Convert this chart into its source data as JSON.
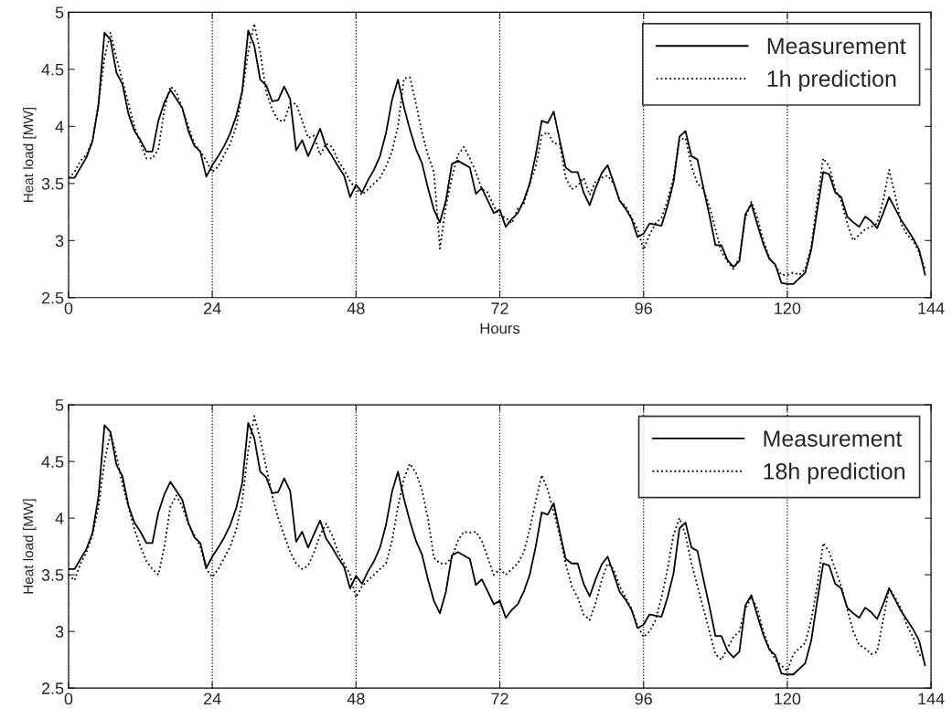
{
  "chart_data": [
    {
      "type": "line",
      "xlabel": "Hours",
      "ylabel": "Heat load [MW]",
      "xlim": [
        0,
        144
      ],
      "xticks": [
        0,
        24,
        48,
        72,
        96,
        120,
        144
      ],
      "ylim": [
        2.5,
        5
      ],
      "yticks": [
        2.5,
        3,
        3.5,
        4,
        4.5,
        5
      ],
      "grid": "x",
      "legend": "top right",
      "marker": "none",
      "x": [
        0,
        1,
        2,
        3,
        4,
        5,
        6,
        7,
        8,
        9,
        10,
        11,
        12,
        13,
        14,
        15,
        16,
        17,
        18,
        19,
        20,
        21,
        22,
        23,
        24,
        25,
        26,
        27,
        28,
        29,
        30,
        31,
        32,
        33,
        34,
        35,
        36,
        37,
        38,
        39,
        40,
        41,
        42,
        43,
        44,
        45,
        46,
        47,
        48,
        49,
        50,
        51,
        52,
        53,
        54,
        55,
        56,
        57,
        58,
        59,
        60,
        61,
        62,
        63,
        64,
        65,
        66,
        67,
        68,
        69,
        70,
        71,
        72,
        73,
        74,
        75,
        76,
        77,
        78,
        79,
        80,
        81,
        82,
        83,
        84,
        85,
        86,
        87,
        88,
        89,
        90,
        91,
        92,
        93,
        94,
        95,
        96,
        97,
        98,
        99,
        100,
        101,
        102,
        103,
        104,
        105,
        106,
        107,
        108,
        109,
        110,
        111,
        112,
        113,
        114,
        115,
        116,
        117,
        118,
        119,
        120,
        121,
        122,
        123,
        124,
        125,
        126,
        127,
        128,
        129,
        130,
        131,
        132,
        133,
        134,
        135,
        136,
        137,
        138,
        139,
        140,
        141,
        142,
        143
      ],
      "series": [
        {
          "name": "Measurement",
          "color": "#000000",
          "line_style": "solid",
          "values": [
            3.55,
            3.55,
            3.64,
            3.73,
            3.87,
            4.19,
            4.82,
            4.76,
            4.47,
            4.37,
            4.11,
            3.96,
            3.88,
            3.78,
            3.78,
            4.05,
            4.21,
            4.32,
            4.24,
            4.16,
            3.96,
            3.83,
            3.78,
            3.56,
            3.66,
            3.74,
            3.83,
            3.94,
            4.09,
            4.31,
            4.84,
            4.71,
            4.41,
            4.36,
            4.22,
            4.23,
            4.35,
            4.24,
            3.79,
            3.88,
            3.74,
            3.86,
            3.98,
            3.82,
            3.74,
            3.65,
            3.57,
            3.38,
            3.49,
            3.42,
            3.53,
            3.62,
            3.74,
            3.94,
            4.23,
            4.41,
            4.17,
            3.97,
            3.8,
            3.68,
            3.46,
            3.27,
            3.16,
            3.35,
            3.67,
            3.7,
            3.67,
            3.64,
            3.41,
            3.46,
            3.35,
            3.24,
            3.27,
            3.12,
            3.19,
            3.24,
            3.35,
            3.5,
            3.75,
            4.05,
            4.03,
            4.13,
            3.88,
            3.64,
            3.6,
            3.6,
            3.42,
            3.31,
            3.46,
            3.59,
            3.66,
            3.51,
            3.35,
            3.28,
            3.19,
            3.03,
            3.06,
            3.15,
            3.14,
            3.13,
            3.3,
            3.51,
            3.91,
            3.96,
            3.74,
            3.71,
            3.46,
            3.22,
            2.96,
            2.96,
            2.83,
            2.77,
            2.82,
            3.23,
            3.32,
            3.14,
            2.97,
            2.84,
            2.79,
            2.63,
            2.62,
            2.62,
            2.67,
            2.72,
            2.92,
            3.27,
            3.6,
            3.58,
            3.42,
            3.38,
            3.21,
            3.16,
            3.12,
            3.21,
            3.17,
            3.11,
            3.24,
            3.38,
            3.28,
            3.18,
            3.1,
            3.02,
            2.92,
            2.7
          ]
        },
        {
          "name": "1h prediction",
          "color": "#000000",
          "line_style": "dotted",
          "values": [
            3.55,
            3.6,
            3.7,
            3.75,
            3.88,
            4.2,
            4.6,
            4.82,
            4.6,
            4.4,
            4.2,
            4.0,
            3.85,
            3.72,
            3.72,
            3.8,
            4.15,
            4.35,
            4.3,
            4.15,
            4.0,
            3.85,
            3.78,
            3.7,
            3.6,
            3.65,
            3.75,
            3.85,
            4.0,
            4.3,
            4.65,
            4.9,
            4.65,
            4.3,
            4.15,
            4.05,
            4.05,
            4.2,
            4.2,
            4.05,
            3.9,
            3.92,
            3.75,
            3.85,
            3.82,
            3.7,
            3.62,
            3.52,
            3.45,
            3.4,
            3.45,
            3.5,
            3.55,
            3.65,
            3.78,
            4.0,
            4.42,
            4.43,
            4.2,
            3.95,
            3.75,
            3.6,
            2.93,
            3.3,
            3.55,
            3.75,
            3.82,
            3.72,
            3.6,
            3.45,
            3.42,
            3.3,
            3.22,
            3.2,
            3.15,
            3.28,
            3.32,
            3.5,
            3.65,
            3.92,
            3.95,
            3.85,
            3.85,
            3.55,
            3.45,
            3.48,
            3.55,
            3.4,
            3.52,
            3.55,
            3.57,
            3.5,
            3.35,
            3.3,
            3.2,
            3.1,
            2.92,
            3.05,
            3.15,
            3.2,
            3.35,
            3.55,
            3.88,
            3.9,
            3.65,
            3.5,
            3.45,
            3.3,
            3.1,
            2.9,
            2.82,
            2.75,
            2.85,
            3.2,
            3.34,
            3.2,
            3.0,
            2.85,
            2.78,
            2.7,
            2.7,
            2.72,
            2.7,
            2.75,
            2.95,
            3.35,
            3.72,
            3.65,
            3.45,
            3.35,
            3.15,
            3.0,
            3.05,
            3.1,
            3.12,
            3.15,
            3.35,
            3.62,
            3.4,
            3.15,
            3.05,
            3.0,
            2.9,
            2.75
          ]
        }
      ]
    },
    {
      "type": "line",
      "ylabel": "Heat load [MW]",
      "xlim": [
        0,
        144
      ],
      "xticks": [
        0,
        24,
        48,
        72,
        96,
        120,
        144
      ],
      "ylim": [
        2.5,
        5
      ],
      "yticks": [
        2.5,
        3,
        3.5,
        4,
        4.5,
        5
      ],
      "grid": "x",
      "legend": "top right",
      "marker": "none",
      "x": [
        0,
        1,
        2,
        3,
        4,
        5,
        6,
        7,
        8,
        9,
        10,
        11,
        12,
        13,
        14,
        15,
        16,
        17,
        18,
        19,
        20,
        21,
        22,
        23,
        24,
        25,
        26,
        27,
        28,
        29,
        30,
        31,
        32,
        33,
        34,
        35,
        36,
        37,
        38,
        39,
        40,
        41,
        42,
        43,
        44,
        45,
        46,
        47,
        48,
        49,
        50,
        51,
        52,
        53,
        54,
        55,
        56,
        57,
        58,
        59,
        60,
        61,
        62,
        63,
        64,
        65,
        66,
        67,
        68,
        69,
        70,
        71,
        72,
        73,
        74,
        75,
        76,
        77,
        78,
        79,
        80,
        81,
        82,
        83,
        84,
        85,
        86,
        87,
        88,
        89,
        90,
        91,
        92,
        93,
        94,
        95,
        96,
        97,
        98,
        99,
        100,
        101,
        102,
        103,
        104,
        105,
        106,
        107,
        108,
        109,
        110,
        111,
        112,
        113,
        114,
        115,
        116,
        117,
        118,
        119,
        120,
        121,
        122,
        123,
        124,
        125,
        126,
        127,
        128,
        129,
        130,
        131,
        132,
        133,
        134,
        135,
        136,
        137,
        138,
        139,
        140,
        141,
        142,
        143
      ],
      "series": [
        {
          "name": "Measurement",
          "color": "#000000",
          "line_style": "solid",
          "values": [
            3.55,
            3.55,
            3.64,
            3.73,
            3.87,
            4.19,
            4.82,
            4.76,
            4.47,
            4.37,
            4.11,
            3.96,
            3.88,
            3.78,
            3.78,
            4.05,
            4.21,
            4.32,
            4.24,
            4.16,
            3.96,
            3.83,
            3.78,
            3.56,
            3.66,
            3.74,
            3.83,
            3.94,
            4.09,
            4.31,
            4.84,
            4.71,
            4.41,
            4.36,
            4.22,
            4.23,
            4.35,
            4.24,
            3.79,
            3.88,
            3.74,
            3.86,
            3.98,
            3.82,
            3.74,
            3.65,
            3.57,
            3.38,
            3.49,
            3.42,
            3.53,
            3.62,
            3.74,
            3.94,
            4.23,
            4.41,
            4.17,
            3.97,
            3.8,
            3.68,
            3.46,
            3.27,
            3.16,
            3.35,
            3.67,
            3.7,
            3.67,
            3.64,
            3.41,
            3.46,
            3.35,
            3.24,
            3.27,
            3.12,
            3.19,
            3.24,
            3.35,
            3.5,
            3.75,
            4.05,
            4.03,
            4.13,
            3.88,
            3.64,
            3.6,
            3.6,
            3.42,
            3.31,
            3.46,
            3.59,
            3.66,
            3.51,
            3.35,
            3.28,
            3.19,
            3.03,
            3.06,
            3.15,
            3.14,
            3.13,
            3.3,
            3.51,
            3.91,
            3.96,
            3.74,
            3.71,
            3.46,
            3.22,
            2.96,
            2.96,
            2.83,
            2.77,
            2.82,
            3.23,
            3.32,
            3.14,
            2.97,
            2.84,
            2.79,
            2.63,
            2.62,
            2.62,
            2.67,
            2.72,
            2.92,
            3.27,
            3.6,
            3.58,
            3.42,
            3.38,
            3.21,
            3.16,
            3.12,
            3.21,
            3.17,
            3.11,
            3.24,
            3.38,
            3.28,
            3.18,
            3.1,
            3.02,
            2.92,
            2.7
          ]
        },
        {
          "name": "18h prediction",
          "color": "#000000",
          "line_style": "dotted",
          "values": [
            3.5,
            3.45,
            3.6,
            3.7,
            3.85,
            4.1,
            4.5,
            4.75,
            4.55,
            4.3,
            4.1,
            3.9,
            3.75,
            3.62,
            3.55,
            3.5,
            3.75,
            4.1,
            4.2,
            4.1,
            3.95,
            3.85,
            3.75,
            3.55,
            3.48,
            3.55,
            3.65,
            3.75,
            3.9,
            4.15,
            4.6,
            4.9,
            4.7,
            4.45,
            4.2,
            4.0,
            3.85,
            3.7,
            3.6,
            3.55,
            3.58,
            3.7,
            3.85,
            3.95,
            3.85,
            3.7,
            3.6,
            3.5,
            3.3,
            3.4,
            3.45,
            3.5,
            3.55,
            3.6,
            3.8,
            4.1,
            4.35,
            4.48,
            4.4,
            4.25,
            4.0,
            3.65,
            3.6,
            3.6,
            3.65,
            3.8,
            3.88,
            3.87,
            3.88,
            3.8,
            3.65,
            3.5,
            3.55,
            3.5,
            3.55,
            3.6,
            3.7,
            3.9,
            4.15,
            4.38,
            4.25,
            4.05,
            3.85,
            3.6,
            3.4,
            3.3,
            3.15,
            3.1,
            3.25,
            3.45,
            3.6,
            3.55,
            3.4,
            3.3,
            3.2,
            3.05,
            2.95,
            3.0,
            3.1,
            3.3,
            3.55,
            3.85,
            4.0,
            3.85,
            3.6,
            3.4,
            3.2,
            3.0,
            2.8,
            2.75,
            2.85,
            2.95,
            3.0,
            3.2,
            3.3,
            3.2,
            3.0,
            2.85,
            2.75,
            2.7,
            2.65,
            2.8,
            2.85,
            2.9,
            3.1,
            3.4,
            3.78,
            3.7,
            3.55,
            3.4,
            3.2,
            3.0,
            2.88,
            2.85,
            2.8,
            2.82,
            3.1,
            3.38,
            3.3,
            3.2,
            3.05,
            2.95,
            2.8,
            2.75
          ]
        }
      ]
    }
  ]
}
